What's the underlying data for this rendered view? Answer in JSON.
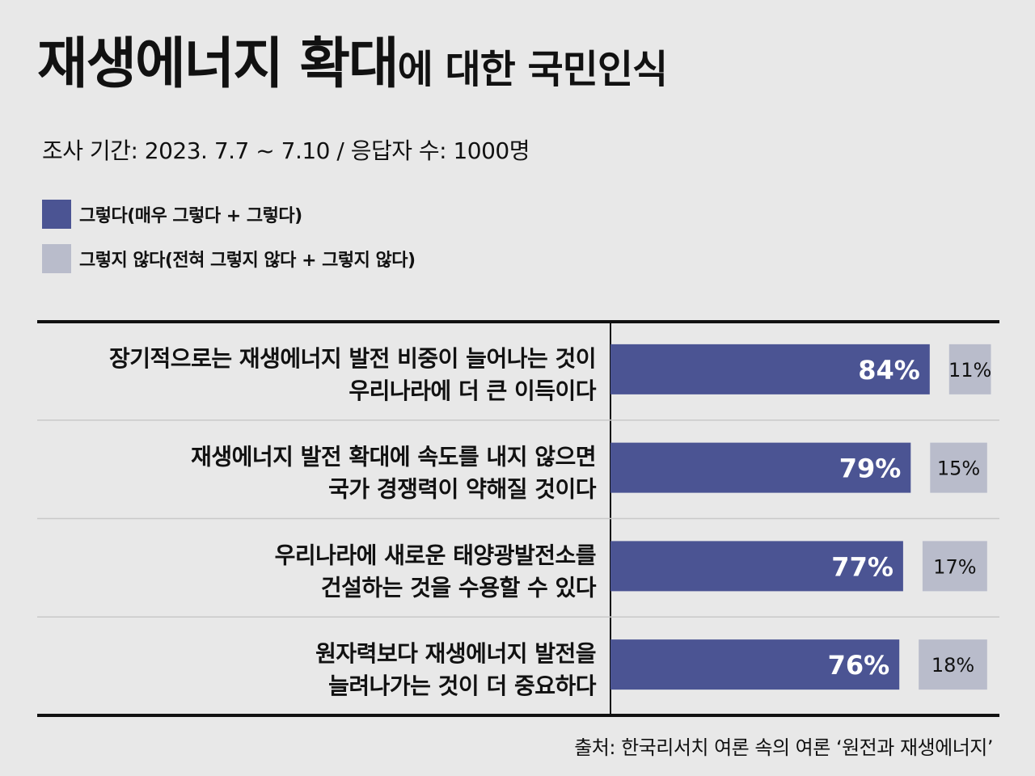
{
  "title": {
    "main": "재생에너지 확대",
    "sub": "에 대한 국민인식"
  },
  "subtitle": "조사 기간: 2023. 7.7 ~ 7.10 / 응답자 수: 1000명",
  "colors": {
    "agree": "#4b5493",
    "disagree": "#b9bccb",
    "background": "#e8e8e8"
  },
  "source": "출처: 한국리서치 여론 속의 여론 ‘원전과 재생에너지’",
  "chart_data": {
    "type": "bar",
    "orientation": "horizontal",
    "categories": [
      [
        "장기적으로는 재생에너지 발전 비중이 늘어나는 것이",
        "우리나라에 더 큰 이득이다"
      ],
      [
        "재생에너지 발전 확대에 속도를 내지 않으면",
        "국가 경쟁력이 약해질 것이다"
      ],
      [
        "우리나라에 새로운 태양광발전소를",
        "건설하는 것을 수용할 수 있다"
      ],
      [
        "원자력보다 재생에너지 발전을",
        "늘려나가는 것이 더 중요하다"
      ]
    ],
    "series": [
      {
        "name": "그렇다(매우 그렇다 + 그렇다)",
        "values": [
          84,
          79,
          77,
          76
        ],
        "labels": [
          "84%",
          "79%",
          "77%",
          "76%"
        ]
      },
      {
        "name": "그렇지 않다(전혀 그렇지 않다 + 그렇지 않다)",
        "values": [
          11,
          15,
          17,
          18
        ],
        "labels": [
          "11%",
          "15%",
          "17%",
          "18%"
        ]
      }
    ],
    "xlim": [
      0,
      100
    ]
  }
}
